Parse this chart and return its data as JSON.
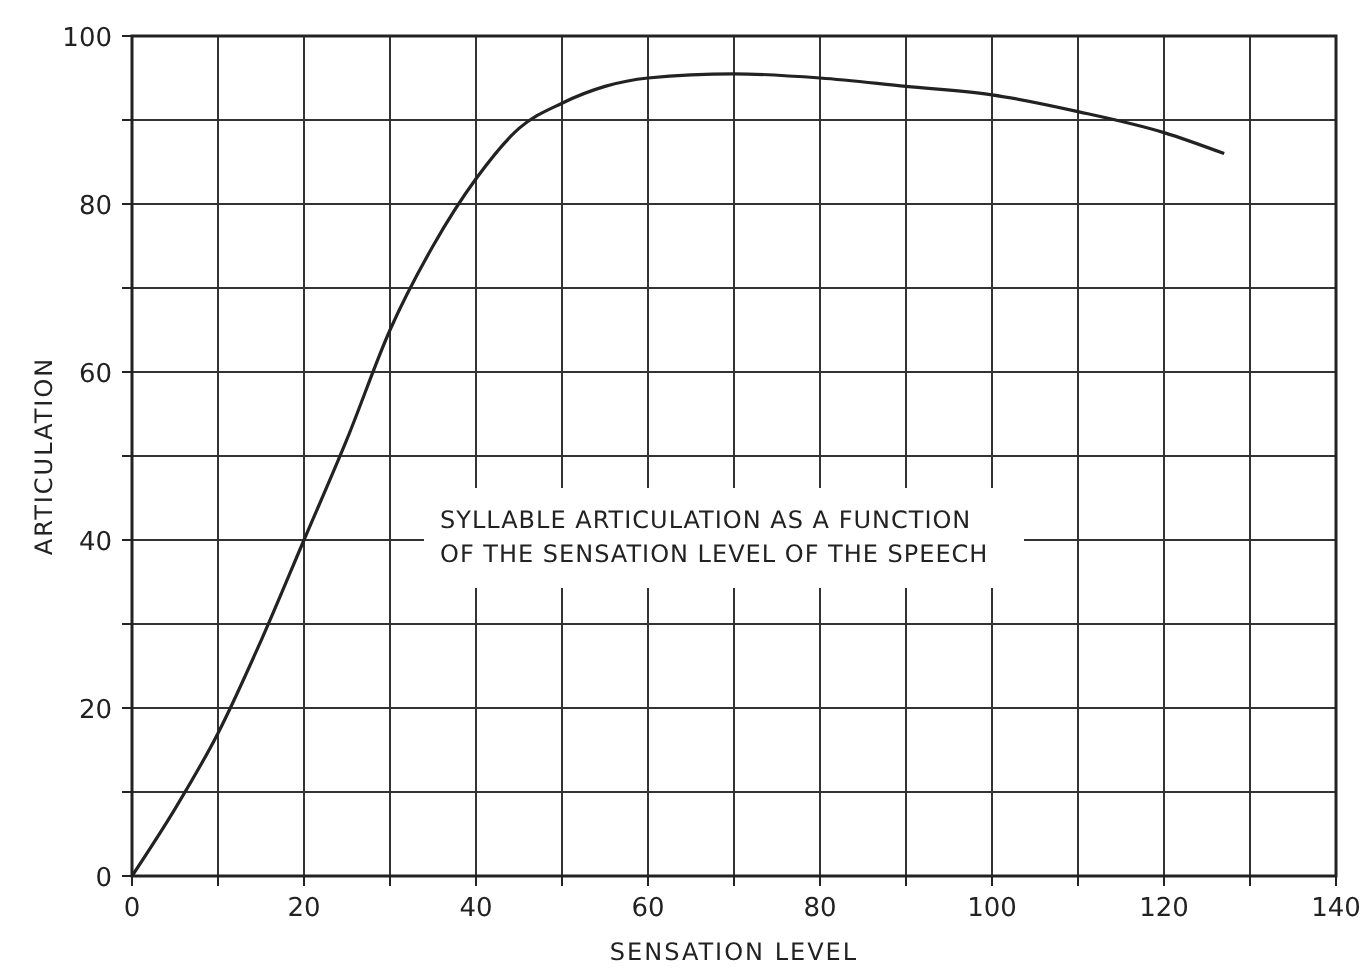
{
  "chart_data": {
    "type": "line",
    "xlabel": "SENSATION LEVEL",
    "ylabel": "ARTICULATION",
    "annotations": [
      "SYLLABLE ARTICULATION AS A FUNCTION\nOF THE SENSATION LEVEL OF THE SPEECH"
    ],
    "x": [
      0,
      5,
      10,
      15,
      20,
      25,
      30,
      35,
      40,
      45,
      50,
      55,
      60,
      70,
      80,
      90,
      100,
      110,
      120,
      127
    ],
    "series": [
      {
        "color": "#222222",
        "values": [
          0,
          8,
          17,
          28,
          40,
          52,
          65,
          75,
          83,
          89,
          92,
          94,
          95,
          95.5,
          95,
          94,
          93,
          91,
          88.5,
          86
        ]
      }
    ],
    "xlim": [
      0,
      140
    ],
    "ylim": [
      0,
      100
    ],
    "xticks": [
      0,
      {
        "value": 10,
        "label": null
      },
      20,
      {
        "value": 30,
        "label": null
      },
      40,
      {
        "value": 50,
        "label": null
      },
      60,
      {
        "value": 70,
        "label": null
      },
      80,
      {
        "value": 90,
        "label": null
      },
      100,
      {
        "value": 110,
        "label": null
      },
      120,
      {
        "value": 130,
        "label": null
      },
      140
    ],
    "yticks": [
      0,
      {
        "value": 10,
        "label": null
      },
      20,
      {
        "value": 30,
        "label": null
      },
      40,
      {
        "value": 50,
        "label": null
      },
      60,
      {
        "value": 70,
        "label": null
      },
      80,
      {
        "value": 90,
        "label": null
      },
      100
    ],
    "grid": true,
    "marker": "none",
    "line_style": "solid"
  }
}
